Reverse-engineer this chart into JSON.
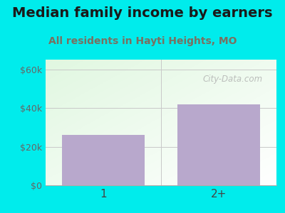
{
  "title": "Median family income by earners",
  "subtitle": "All residents in Hayti Heights, MO",
  "categories": [
    "1",
    "2+"
  ],
  "values": [
    26000,
    42000
  ],
  "bar_color": "#b8a8cc",
  "ylim": [
    0,
    65000
  ],
  "yticks": [
    0,
    20000,
    40000,
    60000
  ],
  "ytick_labels": [
    "$0",
    "$20k",
    "$40k",
    "$60k"
  ],
  "title_color": "#1a1a1a",
  "subtitle_color": "#7a7060",
  "outer_bg": "#00ecec",
  "grid_color": "#c8c8c8",
  "watermark": "City-Data.com",
  "bar_width": 0.72,
  "title_fontsize": 14,
  "subtitle_fontsize": 10
}
